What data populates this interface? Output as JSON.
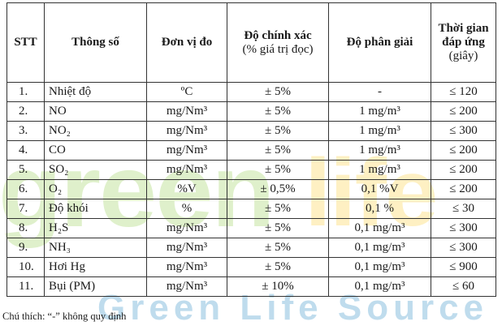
{
  "watermark": {
    "line1_a": "green",
    "line1_b": "life",
    "line2": "Green Life Source"
  },
  "table": {
    "headers": {
      "stt": "STT",
      "param": "Thông số",
      "unit": "Đơn vị đo",
      "accuracy": "Độ chính xác",
      "accuracy_sub": "(% giá trị đọc)",
      "resolution": "Độ phân giải",
      "response_line1": "Thời gian",
      "response_line2": "đáp ứng",
      "response_line3": "(giây)"
    },
    "rows": [
      {
        "stt": "1.",
        "param": "Nhiệt độ",
        "unit": "ºC",
        "accuracy": "± 5%",
        "resolution": "-",
        "response": "≤ 120"
      },
      {
        "stt": "2.",
        "param": "NO",
        "unit": "mg/Nm³",
        "accuracy": "± 5%",
        "resolution": "1 mg/m³",
        "response": "≤ 200"
      },
      {
        "stt": "3.",
        "param": "NO₂",
        "unit": "mg/Nm³",
        "accuracy": "± 5%",
        "resolution": "1 mg/m³",
        "response": "≤ 300"
      },
      {
        "stt": "4.",
        "param": "CO",
        "unit": "mg/Nm³",
        "accuracy": "± 5%",
        "resolution": "1 mg/m³",
        "response": "≤ 200"
      },
      {
        "stt": "5.",
        "param": "SO₂",
        "unit": "mg/Nm³",
        "accuracy": "± 5%",
        "resolution": "1 mg/m³",
        "response": "≤ 200"
      },
      {
        "stt": "6.",
        "param": "O₂",
        "unit": "%V",
        "accuracy": "± 0,5%",
        "resolution": "0,1 %V",
        "response": "≤ 200"
      },
      {
        "stt": "7.",
        "param": "Độ khói",
        "unit": "%",
        "accuracy": "± 5%",
        "resolution": "0,1 %",
        "response": "≤ 30"
      },
      {
        "stt": "8.",
        "param": "H₂S",
        "unit": "mg/Nm³",
        "accuracy": "± 5%",
        "resolution": "0,1 mg/m³",
        "response": "≤ 300"
      },
      {
        "stt": "9.",
        "param": "NH₃",
        "unit": "mg/Nm³",
        "accuracy": "± 5%",
        "resolution": "0,1 mg/m³",
        "response": "≤ 300"
      },
      {
        "stt": "10.",
        "param": "Hơi Hg",
        "unit": "mg/Nm³",
        "accuracy": "± 5%",
        "resolution": "0,1 mg/m³",
        "response": "≤ 900"
      },
      {
        "stt": "11.",
        "param": "Bụi (PM)",
        "unit": "mg/Nm³",
        "accuracy": "± 10%",
        "resolution": "0,1 mg/m³",
        "response": "≤ 60"
      }
    ]
  },
  "footnote": "Chú thích: “-” không quy định"
}
